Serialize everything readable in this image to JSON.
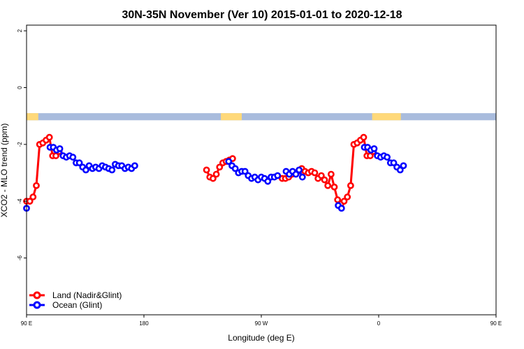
{
  "chart_data": {
    "type": "line",
    "title": "30N-35N November (Ver 10)   2015-01-01 to 2020-12-18",
    "xlabel": "Longitude (deg E)",
    "ylabel": "XCO2 - MLO trend (ppm)",
    "xlim": [
      90,
      450
    ],
    "ylim": [
      -8,
      2.2
    ],
    "x_ticks": [
      {
        "value": 90,
        "label": "90 E"
      },
      {
        "value": 180,
        "label": "180"
      },
      {
        "value": 270,
        "label": "90 W"
      },
      {
        "value": 360,
        "label": "0"
      },
      {
        "value": 450,
        "label": "90 E"
      },
      {
        "value": 540,
        "label": "180"
      }
    ],
    "y_ticks": [
      {
        "value": 2,
        "label": "2"
      },
      {
        "value": 0,
        "label": "0"
      },
      {
        "value": -2,
        "label": "-2"
      },
      {
        "value": -4,
        "label": "-4"
      },
      {
        "value": -6,
        "label": "-6"
      }
    ],
    "land_mask": {
      "y_range": [
        -1.15,
        -0.9
      ],
      "land_color": "#FFD97A",
      "ocean_color": "#A9BCDD",
      "land_lon_ranges": [
        [
          90,
          99
        ],
        [
          239,
          255
        ],
        [
          355,
          377
        ],
        [
          450,
          459
        ]
      ]
    },
    "legend": {
      "position": "bottom-left",
      "entries": [
        "Land (Nadir&Glint)",
        "Ocean (Glint)"
      ]
    },
    "series": [
      {
        "name": "Land (Nadir&Glint)",
        "color": "#FF0000",
        "points": [
          [
            90,
            -4.0
          ],
          [
            92.5,
            -4.0
          ],
          [
            95,
            -3.85
          ],
          [
            97.5,
            -3.45
          ],
          [
            100,
            -2.0
          ],
          [
            102.5,
            -1.95
          ],
          [
            105,
            -1.85
          ],
          [
            107.5,
            -1.75
          ],
          [
            110,
            -2.4
          ],
          [
            112.5,
            -2.4
          ],
          [
            115,
            -2.25
          ],
          [
            228,
            -2.9
          ],
          [
            230.5,
            -3.15
          ],
          [
            233,
            -3.2
          ],
          [
            235.5,
            -3.05
          ],
          [
            238,
            -2.8
          ],
          [
            240.5,
            -2.65
          ],
          [
            243,
            -2.6
          ],
          [
            245.5,
            -2.55
          ],
          [
            248,
            -2.5
          ],
          [
            286,
            -3.2
          ],
          [
            288.5,
            -3.2
          ],
          [
            291,
            -3.15
          ],
          [
            293.5,
            -3.05
          ],
          [
            296,
            -3.0
          ],
          [
            298.5,
            -2.95
          ],
          [
            301,
            -2.85
          ],
          [
            303.5,
            -2.95
          ],
          [
            306,
            -3.0
          ],
          [
            308.5,
            -2.95
          ],
          [
            311,
            -3.0
          ],
          [
            313.5,
            -3.2
          ],
          [
            316,
            -3.1
          ],
          [
            318.5,
            -3.25
          ],
          [
            321,
            -3.45
          ],
          [
            323.5,
            -3.05
          ],
          [
            326,
            -3.5
          ],
          [
            328.5,
            -3.95
          ],
          [
            331,
            -4.1
          ],
          [
            333.5,
            -4.0
          ],
          [
            336,
            -3.85
          ],
          [
            338.5,
            -3.45
          ],
          [
            341,
            -2.0
          ],
          [
            343.5,
            -1.95
          ],
          [
            346,
            -1.85
          ],
          [
            348.5,
            -1.75
          ],
          [
            351,
            -2.4
          ],
          [
            353.5,
            -2.4
          ],
          [
            356,
            -2.25
          ]
        ]
      },
      {
        "name": "Ocean (Glint)",
        "color": "#0000FF",
        "points": [
          [
            90,
            -4.25
          ],
          [
            108,
            -2.1
          ],
          [
            110.5,
            -2.1
          ],
          [
            113,
            -2.2
          ],
          [
            115.5,
            -2.15
          ],
          [
            118,
            -2.4
          ],
          [
            120.5,
            -2.45
          ],
          [
            123,
            -2.4
          ],
          [
            125.5,
            -2.45
          ],
          [
            128,
            -2.65
          ],
          [
            130.5,
            -2.65
          ],
          [
            133,
            -2.8
          ],
          [
            135.5,
            -2.9
          ],
          [
            138,
            -2.75
          ],
          [
            140.5,
            -2.85
          ],
          [
            143,
            -2.8
          ],
          [
            145.5,
            -2.85
          ],
          [
            148,
            -2.75
          ],
          [
            150.5,
            -2.8
          ],
          [
            153,
            -2.85
          ],
          [
            155.5,
            -2.9
          ],
          [
            158,
            -2.7
          ],
          [
            160.5,
            -2.75
          ],
          [
            163,
            -2.75
          ],
          [
            165.5,
            -2.85
          ],
          [
            168,
            -2.8
          ],
          [
            170.5,
            -2.85
          ],
          [
            173,
            -2.75
          ],
          [
            245,
            -2.6
          ],
          [
            247.5,
            -2.75
          ],
          [
            250,
            -2.85
          ],
          [
            252.5,
            -3.0
          ],
          [
            255,
            -2.95
          ],
          [
            257.5,
            -2.95
          ],
          [
            260,
            -3.1
          ],
          [
            262.5,
            -3.2
          ],
          [
            265,
            -3.15
          ],
          [
            267.5,
            -3.25
          ],
          [
            270,
            -3.15
          ],
          [
            272.5,
            -3.2
          ],
          [
            275,
            -3.3
          ],
          [
            277.5,
            -3.15
          ],
          [
            280,
            -3.15
          ],
          [
            282.5,
            -3.1
          ],
          [
            289,
            -2.95
          ],
          [
            291.5,
            -3.05
          ],
          [
            294,
            -2.95
          ],
          [
            296.5,
            -3.05
          ],
          [
            299,
            -2.9
          ],
          [
            301.5,
            -3.15
          ],
          [
            329,
            -4.15
          ],
          [
            331.5,
            -4.25
          ],
          [
            349,
            -2.1
          ],
          [
            351.5,
            -2.1
          ],
          [
            354,
            -2.2
          ],
          [
            356.5,
            -2.15
          ],
          [
            359,
            -2.4
          ],
          [
            361.5,
            -2.45
          ],
          [
            364,
            -2.4
          ],
          [
            366.5,
            -2.45
          ],
          [
            369,
            -2.65
          ],
          [
            371.5,
            -2.65
          ],
          [
            374,
            -2.8
          ],
          [
            376.5,
            -2.9
          ],
          [
            379,
            -2.75
          ]
        ]
      }
    ]
  }
}
